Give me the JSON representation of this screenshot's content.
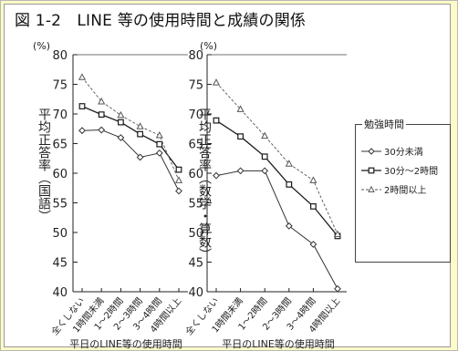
{
  "title": "図 1-2　LINE 等の使用時間と成績の関係",
  "chart_data": [
    {
      "type": "line",
      "ylabel": "平均正答率（国語）",
      "yunit": "(%)",
      "xlabel": "平日のLINE等の使用時間",
      "ylim": [
        40,
        80
      ],
      "yticks": [
        40,
        45,
        50,
        55,
        60,
        65,
        70,
        75,
        80
      ],
      "categories": [
        "全くしない",
        "1時間未満",
        "1～2時間",
        "2～3時間",
        "3～4時間",
        "4時間以上"
      ],
      "series": [
        {
          "name": "30分未満",
          "marker": "diamond",
          "values": [
            67.2,
            67.3,
            66.0,
            62.7,
            63.4,
            57.0
          ]
        },
        {
          "name": "30分～2時間",
          "marker": "square",
          "values": [
            71.3,
            69.9,
            68.6,
            66.6,
            64.9,
            60.6
          ]
        },
        {
          "name": "2時間以上",
          "marker": "triangle",
          "values": [
            76.2,
            72.1,
            69.8,
            67.9,
            66.4,
            58.8
          ]
        }
      ]
    },
    {
      "type": "line",
      "ylabel": "平均正答率（数学・算数）",
      "yunit": "(%)",
      "xlabel": "平日のLINE等の使用時間",
      "ylim": [
        40,
        80
      ],
      "yticks": [
        40,
        45,
        50,
        55,
        60,
        65,
        70,
        75,
        80
      ],
      "categories": [
        "全くしない",
        "1時間未満",
        "1～2時間",
        "2～3時間",
        "3～4時間",
        "4時間以上"
      ],
      "series": [
        {
          "name": "30分未満",
          "marker": "diamond",
          "values": [
            59.6,
            60.4,
            60.4,
            51.1,
            48.0,
            40.5
          ]
        },
        {
          "name": "30分～2時間",
          "marker": "square",
          "values": [
            68.9,
            66.2,
            62.8,
            58.1,
            54.4,
            49.4
          ]
        },
        {
          "name": "2時間以上",
          "marker": "triangle",
          "values": [
            75.3,
            70.8,
            66.3,
            61.6,
            58.8,
            49.7
          ]
        }
      ]
    }
  ],
  "legend": {
    "title": "勉強時間",
    "items": [
      "30分未満",
      "30分～2時間",
      "2時間以上"
    ]
  }
}
